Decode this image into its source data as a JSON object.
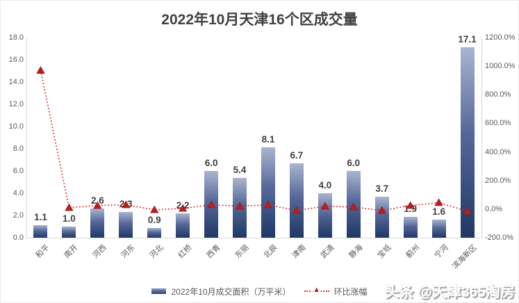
{
  "title": "2022年10月天津16个区成交量",
  "watermark": "头条 @天津365淘房",
  "legend": {
    "bar_series": "2022年10月成交面积（万平米）",
    "line_series": "环比涨幅"
  },
  "colors": {
    "bar_gradient_top": "#a9b5cf",
    "bar_gradient_bottom": "#1f3864",
    "line": "#e02a2a",
    "marker": "#b51f1f",
    "title_text": "#404040",
    "value_label_text": "#404040",
    "axis_text": "#595959",
    "axis_line": "#d9d9d9"
  },
  "chart_data": {
    "type": "bar",
    "subtype": "combo-bar-line-dual-axis",
    "title": "2022年10月天津16个区成交量",
    "categories": [
      "和平",
      "南开",
      "河西",
      "河东",
      "河北",
      "红桥",
      "西青",
      "东丽",
      "北辰",
      "津南",
      "武清",
      "静海",
      "宝坻",
      "蓟州",
      "宁河",
      "滨海新区"
    ],
    "series": [
      {
        "name": "2022年10月成交面积（万平米）",
        "type": "bar",
        "axis": "left",
        "values": [
          1.1,
          1.0,
          2.6,
          2.3,
          0.9,
          2.2,
          6.0,
          5.4,
          8.1,
          6.7,
          4.0,
          6.0,
          3.7,
          1.9,
          1.6,
          17.1
        ],
        "data_labels": [
          "1.1",
          "1.0",
          "2.6",
          "2.3",
          "0.9",
          "2.2",
          "6.0",
          "5.4",
          "8.1",
          "6.7",
          "4.0",
          "6.0",
          "3.7",
          "1.9",
          "1.6",
          "17.1"
        ]
      },
      {
        "name": "环比涨幅",
        "type": "line",
        "axis": "right",
        "line_style": "dotted",
        "marker": "triangle",
        "values_pct": [
          970,
          10,
          25,
          30,
          -5,
          5,
          30,
          20,
          30,
          -10,
          20,
          15,
          -10,
          25,
          45,
          -15
        ]
      }
    ],
    "left_axis": {
      "min": 0,
      "max": 18,
      "step": 2,
      "tick_labels": [
        "0.0",
        "2.0",
        "4.0",
        "6.0",
        "8.0",
        "10.0",
        "12.0",
        "14.0",
        "16.0",
        "18.0"
      ]
    },
    "right_axis": {
      "min": -200,
      "max": 1200,
      "step": 200,
      "tick_labels": [
        "-200.0%",
        "0.0%",
        "200.0%",
        "400.0%",
        "600.0%",
        "800.0%",
        "1000.0%",
        "1200.0%"
      ]
    },
    "grid": false,
    "legend_position": "bottom"
  }
}
